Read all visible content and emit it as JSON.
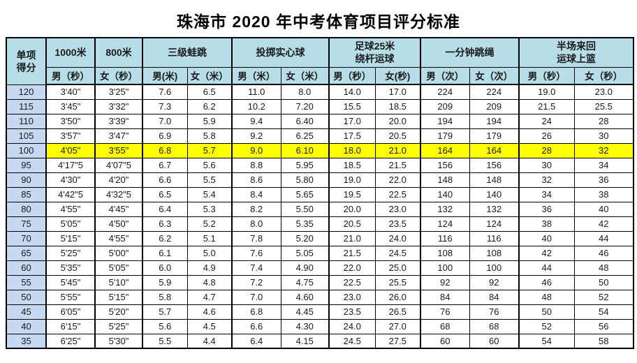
{
  "title": "珠海市 2020 年中考体育项目评分标准",
  "colors": {
    "header_bg": "#b7dee8",
    "score_col_bg": "#c6d9f1",
    "highlight_bg": "#ffff00",
    "border": "#000000"
  },
  "table": {
    "score_header_lines": [
      "单项",
      "得分"
    ],
    "groups": [
      {
        "label_lines": [
          "1000米"
        ],
        "subs": [
          "男（秒）"
        ]
      },
      {
        "label_lines": [
          "800米"
        ],
        "subs": [
          "女（秒）"
        ]
      },
      {
        "label_lines": [
          "三级蛙跳"
        ],
        "subs": [
          "男(米)",
          "女（米）"
        ]
      },
      {
        "label_lines": [
          "投掷实心球"
        ],
        "subs": [
          "男（米）",
          "女（米）"
        ]
      },
      {
        "label_lines": [
          "足球25米",
          "绕杆运球"
        ],
        "subs": [
          "男（秒）",
          "女(秒)"
        ]
      },
      {
        "label_lines": [
          "一分钟跳绳"
        ],
        "subs": [
          "男（次）",
          "女（次）"
        ]
      },
      {
        "label_lines": [
          "半场来回",
          "运球上篮"
        ],
        "subs": [
          "男（秒）",
          "女（秒）"
        ]
      }
    ],
    "rows": [
      {
        "score": "120",
        "highlight": false,
        "values": [
          "3'40\"",
          "3'25\"",
          "7.6",
          "6.5",
          "11.0",
          "8.0",
          "14.0",
          "17.0",
          "224",
          "224",
          "19.0",
          "23.0"
        ]
      },
      {
        "score": "115",
        "highlight": false,
        "values": [
          "3'45\"",
          "3'32\"",
          "7.3",
          "6.2",
          "10.2",
          "7.20",
          "15.5",
          "18.5",
          "209",
          "209",
          "21.5",
          "25.5"
        ]
      },
      {
        "score": "110",
        "highlight": false,
        "values": [
          "3'50\"",
          "3'39\"",
          "7.0",
          "5.9",
          "9.4",
          "6.40",
          "17.0",
          "20.0",
          "194",
          "194",
          "24",
          "28"
        ]
      },
      {
        "score": "105",
        "highlight": false,
        "values": [
          "3'57\"",
          "3'47\"",
          "6.9",
          "5.8",
          "9.2",
          "6.25",
          "17.5",
          "20.5",
          "179",
          "179",
          "26",
          "30"
        ]
      },
      {
        "score": "100",
        "highlight": true,
        "values": [
          "4'05\"",
          "3'55\"",
          "6.8",
          "5.7",
          "9.0",
          "6.10",
          "18.0",
          "21.0",
          "164",
          "164",
          "28",
          "32"
        ]
      },
      {
        "score": "95",
        "highlight": false,
        "values": [
          "4'17\"5",
          "4'07\"5",
          "6.7",
          "5.6",
          "8.8",
          "5.95",
          "18.5",
          "21.5",
          "156",
          "156",
          "30",
          "34"
        ]
      },
      {
        "score": "90",
        "highlight": false,
        "values": [
          "4'30\"",
          "4'20\"",
          "6.6",
          "5.5",
          "8.6",
          "5.80",
          "19.0",
          "22.0",
          "148",
          "148",
          "32",
          "36"
        ]
      },
      {
        "score": "85",
        "highlight": false,
        "values": [
          "4'42\"5",
          "4'32\"5",
          "6.5",
          "5.4",
          "8.4",
          "5.65",
          "19.5",
          "22.5",
          "140",
          "140",
          "34",
          "38"
        ]
      },
      {
        "score": "80",
        "highlight": false,
        "values": [
          "4'55\"",
          "4'45\"",
          "6.4",
          "5.3",
          "8.2",
          "5.50",
          "20.0",
          "23.0",
          "132",
          "132",
          "36",
          "40"
        ]
      },
      {
        "score": "75",
        "highlight": false,
        "values": [
          "5'05\"",
          "4'50\"",
          "6.3",
          "5.2",
          "8.0",
          "5.35",
          "20.5",
          "23.5",
          "124",
          "124",
          "38",
          "42"
        ]
      },
      {
        "score": "70",
        "highlight": false,
        "values": [
          "5'15\"",
          "4'55\"",
          "6.2",
          "5.1",
          "7.8",
          "5.20",
          "21.0",
          "24.0",
          "116",
          "116",
          "40",
          "44"
        ]
      },
      {
        "score": "65",
        "highlight": false,
        "values": [
          "5'25\"",
          "5'00\"",
          "6.1",
          "5.0",
          "7.6",
          "5.05",
          "21.5",
          "24.5",
          "108",
          "108",
          "42",
          "46"
        ]
      },
      {
        "score": "60",
        "highlight": false,
        "values": [
          "5'35\"",
          "5'05\"",
          "6.0",
          "4.9",
          "7.4",
          "4.90",
          "22.0",
          "25.0",
          "100",
          "100",
          "44",
          "48"
        ]
      },
      {
        "score": "55",
        "highlight": false,
        "values": [
          "5'45\"",
          "5'10\"",
          "5.9",
          "4.8",
          "7.2",
          "4.75",
          "22.5",
          "25.5",
          "92",
          "92",
          "46",
          "50"
        ]
      },
      {
        "score": "50",
        "highlight": false,
        "values": [
          "5'55\"",
          "5'15\"",
          "5.8",
          "4.7",
          "7.0",
          "4.60",
          "23.0",
          "26.0",
          "84",
          "84",
          "48",
          "52"
        ]
      },
      {
        "score": "45",
        "highlight": false,
        "values": [
          "6'05\"",
          "5'20\"",
          "5.7",
          "4.6",
          "6.8",
          "4.45",
          "23.5",
          "26.5",
          "76",
          "76",
          "50",
          "54"
        ]
      },
      {
        "score": "40",
        "highlight": false,
        "values": [
          "6'15\"",
          "5'25\"",
          "5.6",
          "4.5",
          "6.6",
          "4.30",
          "24.0",
          "27.0",
          "68",
          "68",
          "52",
          "56"
        ]
      },
      {
        "score": "35",
        "highlight": false,
        "values": [
          "6'25\"",
          "5'30\"",
          "5.5",
          "4.4",
          "6.4",
          "4.15",
          "24.5",
          "27.5",
          "60",
          "60",
          "54",
          "58"
        ]
      }
    ]
  }
}
